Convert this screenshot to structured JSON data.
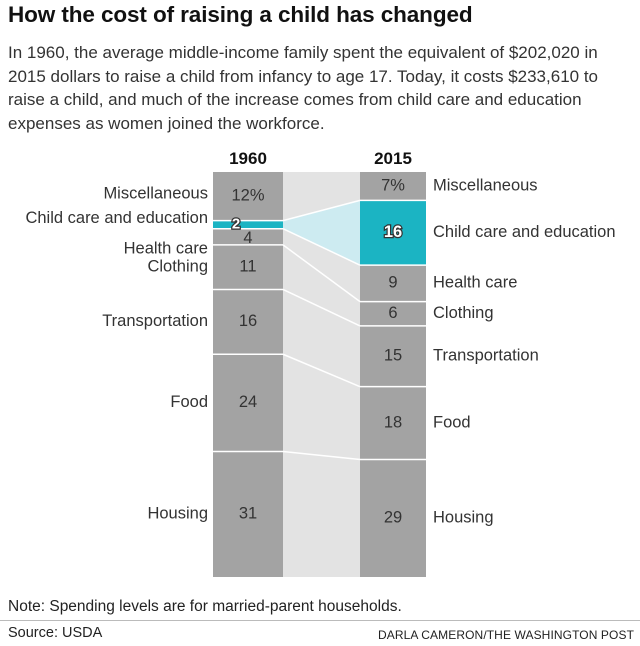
{
  "title": "How the cost of raising a child has changed",
  "intro": "In 1960, the average middle-income family spent the equivalent of $202,020 in 2015 dollars to raise a child from infancy to age 17. Today, it costs $233,610 to raise a child, and much of the increase comes from child care and education expenses as women joined the workforce.",
  "note": "Note: Spending levels are for married-parent households.",
  "source": "Source: USDA",
  "credit": "DARLA CAMERON/THE WASHINGTON POST",
  "colors": {
    "bar": "#a3a3a3",
    "band": "#e3e3e3",
    "highlight": "#1bb4c3",
    "highlight_band": "#cdebf1",
    "separator": "#ffffff"
  },
  "chart_data": {
    "type": "bar",
    "subtype": "stacked-100-percent-slope",
    "unit": "percent of total child-rearing spending",
    "categories": [
      "Miscellaneous",
      "Child care and education",
      "Health care",
      "Clothing",
      "Transportation",
      "Food",
      "Housing"
    ],
    "series": [
      {
        "name": "1960",
        "values": [
          12,
          2,
          4,
          11,
          16,
          24,
          31
        ],
        "labels": [
          "12%",
          "2",
          "4",
          "11",
          "16",
          "24",
          "31"
        ]
      },
      {
        "name": "2015",
        "values": [
          7,
          16,
          9,
          6,
          15,
          18,
          29
        ],
        "labels": [
          "7%",
          "16",
          "9",
          "6",
          "15",
          "18",
          "29"
        ]
      }
    ],
    "highlight_category": "Child care and education",
    "ylim": [
      0,
      100
    ]
  }
}
